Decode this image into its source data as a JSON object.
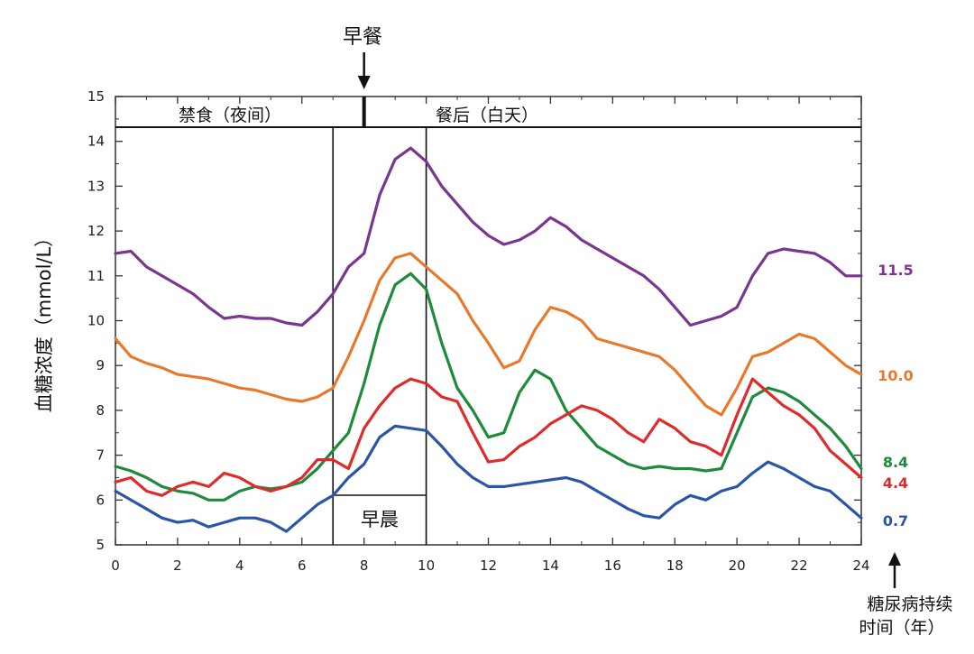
{
  "chart_data": {
    "type": "line",
    "title": "",
    "xlabel": "",
    "ylabel": "血糖浓度（mmol/L）",
    "xlim": [
      0,
      24
    ],
    "ylim": [
      5,
      15
    ],
    "x_ticks": [
      "0",
      "2",
      "4",
      "6",
      "8",
      "10",
      "12",
      "14",
      "16",
      "18",
      "20",
      "22",
      "24"
    ],
    "y_ticks": [
      "5",
      "6",
      "7",
      "8",
      "9",
      "10",
      "11",
      "12",
      "13",
      "14",
      "15"
    ],
    "top_band": {
      "left_label": "禁食（夜间）",
      "right_label": "餐后（白天）",
      "divider_x": 8
    },
    "breakfast": {
      "label": "早餐",
      "x": 8
    },
    "morning_window": {
      "label": "早晨",
      "x_start": 7,
      "x_end": 10
    },
    "legend_title": "糖尿病持续时间（年）",
    "series": [
      {
        "name": "11.5",
        "color": "#7a3590",
        "x": [
          0,
          0.5,
          1,
          1.5,
          2,
          2.5,
          3,
          3.5,
          4,
          4.5,
          5,
          5.5,
          6,
          6.5,
          7,
          7.5,
          8,
          8.5,
          9,
          9.5,
          10,
          10.5,
          11,
          11.5,
          12,
          12.5,
          13,
          13.5,
          14,
          14.5,
          15,
          15.5,
          16,
          16.5,
          17,
          17.5,
          18,
          18.5,
          19,
          19.5,
          20,
          20.5,
          21,
          21.5,
          22,
          22.5,
          23,
          23.5,
          24
        ],
        "values": [
          11.5,
          11.55,
          11.2,
          11.0,
          10.8,
          10.6,
          10.3,
          10.05,
          10.1,
          10.05,
          10.05,
          9.95,
          9.9,
          10.2,
          10.6,
          11.2,
          11.5,
          12.8,
          13.6,
          13.85,
          13.55,
          13.0,
          12.6,
          12.2,
          11.9,
          11.7,
          11.8,
          12.0,
          12.3,
          12.1,
          11.8,
          11.6,
          11.4,
          11.2,
          11.0,
          10.7,
          10.3,
          9.9,
          10.0,
          10.1,
          10.3,
          11.0,
          11.5,
          11.6,
          11.55,
          11.5,
          11.3,
          11.0,
          11.0
        ]
      },
      {
        "name": "10.0",
        "color": "#e8792c",
        "x": [
          0,
          0.5,
          1,
          1.5,
          2,
          2.5,
          3,
          3.5,
          4,
          4.5,
          5,
          5.5,
          6,
          6.5,
          7,
          7.5,
          8,
          8.5,
          9,
          9.5,
          10,
          10.5,
          11,
          11.5,
          12,
          12.5,
          13,
          13.5,
          14,
          14.5,
          15,
          15.5,
          16,
          16.5,
          17,
          17.5,
          18,
          18.5,
          19,
          19.5,
          20,
          20.5,
          21,
          21.5,
          22,
          22.5,
          23,
          23.5,
          24
        ],
        "values": [
          9.6,
          9.2,
          9.05,
          8.95,
          8.8,
          8.75,
          8.7,
          8.6,
          8.5,
          8.45,
          8.35,
          8.25,
          8.2,
          8.3,
          8.5,
          9.2,
          10.0,
          10.9,
          11.4,
          11.5,
          11.2,
          10.9,
          10.6,
          10.0,
          9.5,
          8.95,
          9.1,
          9.8,
          10.3,
          10.2,
          10.0,
          9.6,
          9.5,
          9.4,
          9.3,
          9.2,
          8.9,
          8.5,
          8.1,
          7.9,
          8.5,
          9.2,
          9.3,
          9.5,
          9.7,
          9.6,
          9.3,
          9.0,
          8.8
        ]
      },
      {
        "name": "8.4",
        "color": "#1e8a3c",
        "x": [
          0,
          0.5,
          1,
          1.5,
          2,
          2.5,
          3,
          3.5,
          4,
          4.5,
          5,
          5.5,
          6,
          6.5,
          7,
          7.5,
          8,
          8.5,
          9,
          9.5,
          10,
          10.5,
          11,
          11.5,
          12,
          12.5,
          13,
          13.5,
          14,
          14.5,
          15,
          15.5,
          16,
          16.5,
          17,
          17.5,
          18,
          18.5,
          19,
          19.5,
          20,
          20.5,
          21,
          21.5,
          22,
          22.5,
          23,
          23.5,
          24
        ],
        "values": [
          6.75,
          6.65,
          6.5,
          6.3,
          6.2,
          6.15,
          6.0,
          6.0,
          6.2,
          6.3,
          6.25,
          6.3,
          6.4,
          6.7,
          7.1,
          7.5,
          8.6,
          9.9,
          10.8,
          11.05,
          10.7,
          9.5,
          8.5,
          8.0,
          7.4,
          7.5,
          8.4,
          8.9,
          8.7,
          8.0,
          7.6,
          7.2,
          7.0,
          6.8,
          6.7,
          6.75,
          6.7,
          6.7,
          6.65,
          6.7,
          7.5,
          8.3,
          8.5,
          8.4,
          8.2,
          7.9,
          7.6,
          7.2,
          6.7
        ]
      },
      {
        "name": "4.4",
        "color": "#e02b2b",
        "x": [
          0,
          0.5,
          1,
          1.5,
          2,
          2.5,
          3,
          3.5,
          4,
          4.5,
          5,
          5.5,
          6,
          6.5,
          7,
          7.5,
          8,
          8.5,
          9,
          9.5,
          10,
          10.5,
          11,
          11.5,
          12,
          12.5,
          13,
          13.5,
          14,
          14.5,
          15,
          15.5,
          16,
          16.5,
          17,
          17.5,
          18,
          18.5,
          19,
          19.5,
          20,
          20.5,
          21,
          21.5,
          22,
          22.5,
          23,
          23.5,
          24
        ],
        "values": [
          6.4,
          6.5,
          6.2,
          6.1,
          6.3,
          6.4,
          6.3,
          6.6,
          6.5,
          6.3,
          6.2,
          6.3,
          6.5,
          6.9,
          6.9,
          6.7,
          7.6,
          8.1,
          8.5,
          8.7,
          8.6,
          8.3,
          8.2,
          7.5,
          6.85,
          6.9,
          7.2,
          7.4,
          7.7,
          7.9,
          8.1,
          8.0,
          7.8,
          7.5,
          7.3,
          7.8,
          7.6,
          7.3,
          7.2,
          7.0,
          7.9,
          8.7,
          8.4,
          8.1,
          7.9,
          7.6,
          7.1,
          6.8,
          6.5
        ]
      },
      {
        "name": "0.7",
        "color": "#2b56a8",
        "x": [
          0,
          0.5,
          1,
          1.5,
          2,
          2.5,
          3,
          3.5,
          4,
          4.5,
          5,
          5.5,
          6,
          6.5,
          7,
          7.5,
          8,
          8.5,
          9,
          9.5,
          10,
          10.5,
          11,
          11.5,
          12,
          12.5,
          13,
          13.5,
          14,
          14.5,
          15,
          15.5,
          16,
          16.5,
          17,
          17.5,
          18,
          18.5,
          19,
          19.5,
          20,
          20.5,
          21,
          21.5,
          22,
          22.5,
          23,
          23.5,
          24
        ],
        "values": [
          6.2,
          6.0,
          5.8,
          5.6,
          5.5,
          5.55,
          5.4,
          5.5,
          5.6,
          5.6,
          5.5,
          5.3,
          5.6,
          5.9,
          6.1,
          6.5,
          6.8,
          7.4,
          7.65,
          7.6,
          7.55,
          7.2,
          6.8,
          6.5,
          6.3,
          6.3,
          6.35,
          6.4,
          6.45,
          6.5,
          6.4,
          6.2,
          6.0,
          5.8,
          5.65,
          5.6,
          5.9,
          6.1,
          6.0,
          6.2,
          6.3,
          6.6,
          6.85,
          6.7,
          6.5,
          6.3,
          6.2,
          5.9,
          5.6
        ]
      }
    ]
  }
}
